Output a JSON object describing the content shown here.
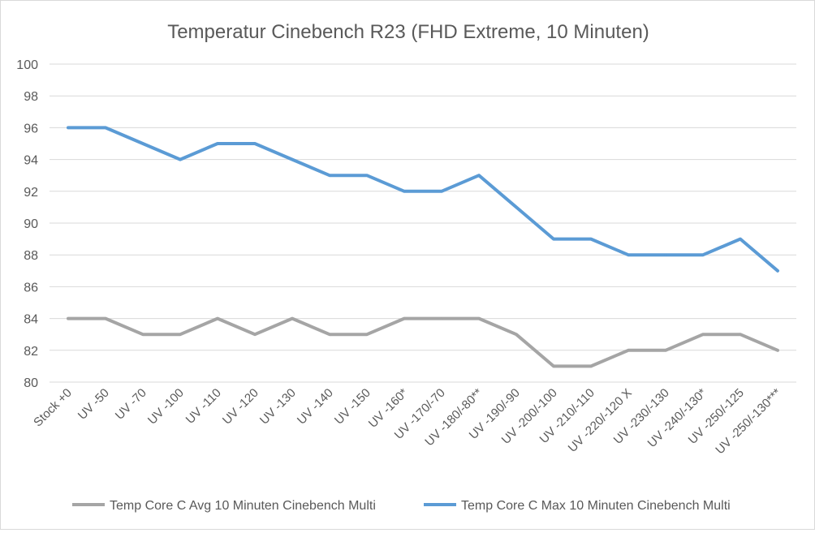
{
  "chart_data": {
    "type": "line",
    "title": "Temperatur Cinebench R23 (FHD Extreme, 10 Minuten)",
    "xlabel": "",
    "ylabel": "",
    "ylim": [
      80,
      100
    ],
    "ytick_step": 2,
    "grid": true,
    "legend_position": "bottom",
    "categories": [
      "Stock +0",
      "UV -50",
      "UV -70",
      "UV -100",
      "UV -110",
      "UV -120",
      "UV -130",
      "UV -140",
      "UV -150",
      "UV -160*",
      "UV -170/-70",
      "UV -180/-80**",
      "UV -190/-90",
      "UV -200/-100",
      "UV -210/-110",
      "UV -220/-120 X",
      "UV -230/-130",
      "UV -240/-130*",
      "UV -250/-125",
      "UV -250/-130***"
    ],
    "series": [
      {
        "name": "Temp Core C Avg 10 Minuten Cinebench Multi",
        "color": "#a5a5a5",
        "values": [
          84,
          84,
          83,
          83,
          84,
          83,
          84,
          83,
          83,
          84,
          84,
          84,
          83,
          81,
          81,
          82,
          82,
          83,
          83,
          82
        ]
      },
      {
        "name": "Temp Core C Max 10 Minuten Cinebench Multi",
        "color": "#5b9bd5",
        "values": [
          96,
          96,
          95,
          94,
          95,
          95,
          94,
          93,
          93,
          92,
          92,
          93,
          91,
          89,
          89,
          88,
          88,
          88,
          89,
          87
        ]
      }
    ]
  }
}
